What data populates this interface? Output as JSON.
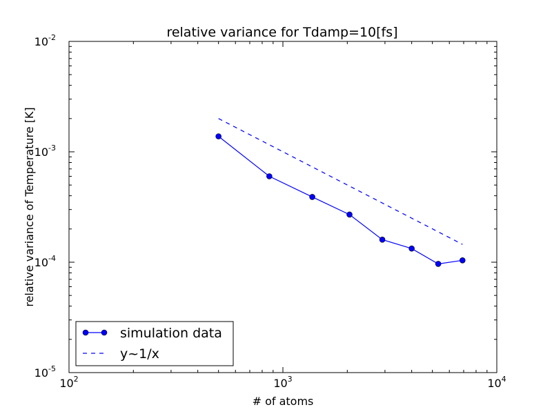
{
  "chart_data": {
    "type": "line",
    "title": "relative variance for Tdamp=10[fs]",
    "xlabel": "# of atoms",
    "ylabel": "relative variance of Temperature [K]",
    "xscale": "log",
    "yscale": "log",
    "xlim": [
      100,
      10000
    ],
    "ylim": [
      1e-05,
      0.01
    ],
    "grid": false,
    "legend_position": "lower-left",
    "x_ticks": [
      {
        "value": 100,
        "base": "10",
        "exp": "2"
      },
      {
        "value": 1000,
        "base": "10",
        "exp": "3"
      },
      {
        "value": 10000,
        "base": "10",
        "exp": "4"
      }
    ],
    "y_ticks": [
      {
        "value": 1e-05,
        "base": "10",
        "exp": "-5"
      },
      {
        "value": 0.0001,
        "base": "10",
        "exp": "-4"
      },
      {
        "value": 0.001,
        "base": "10",
        "exp": "-3"
      },
      {
        "value": 0.01,
        "base": "10",
        "exp": "-2"
      }
    ],
    "series": [
      {
        "name": "simulation data",
        "style": "solid-marker",
        "color": "#0000ff",
        "x": [
          500,
          864,
          1372,
          2048,
          2916,
          4000,
          5324,
          6912
        ],
        "y": [
          0.00138,
          0.0006,
          0.00039,
          0.00027,
          0.00016,
          0.000133,
          9.65e-05,
          0.000104
        ]
      },
      {
        "name": "y~1/x",
        "style": "dashed",
        "color": "#0000ff",
        "x": [
          500,
          6912
        ],
        "y": [
          0.002,
          0.000145
        ]
      }
    ]
  }
}
